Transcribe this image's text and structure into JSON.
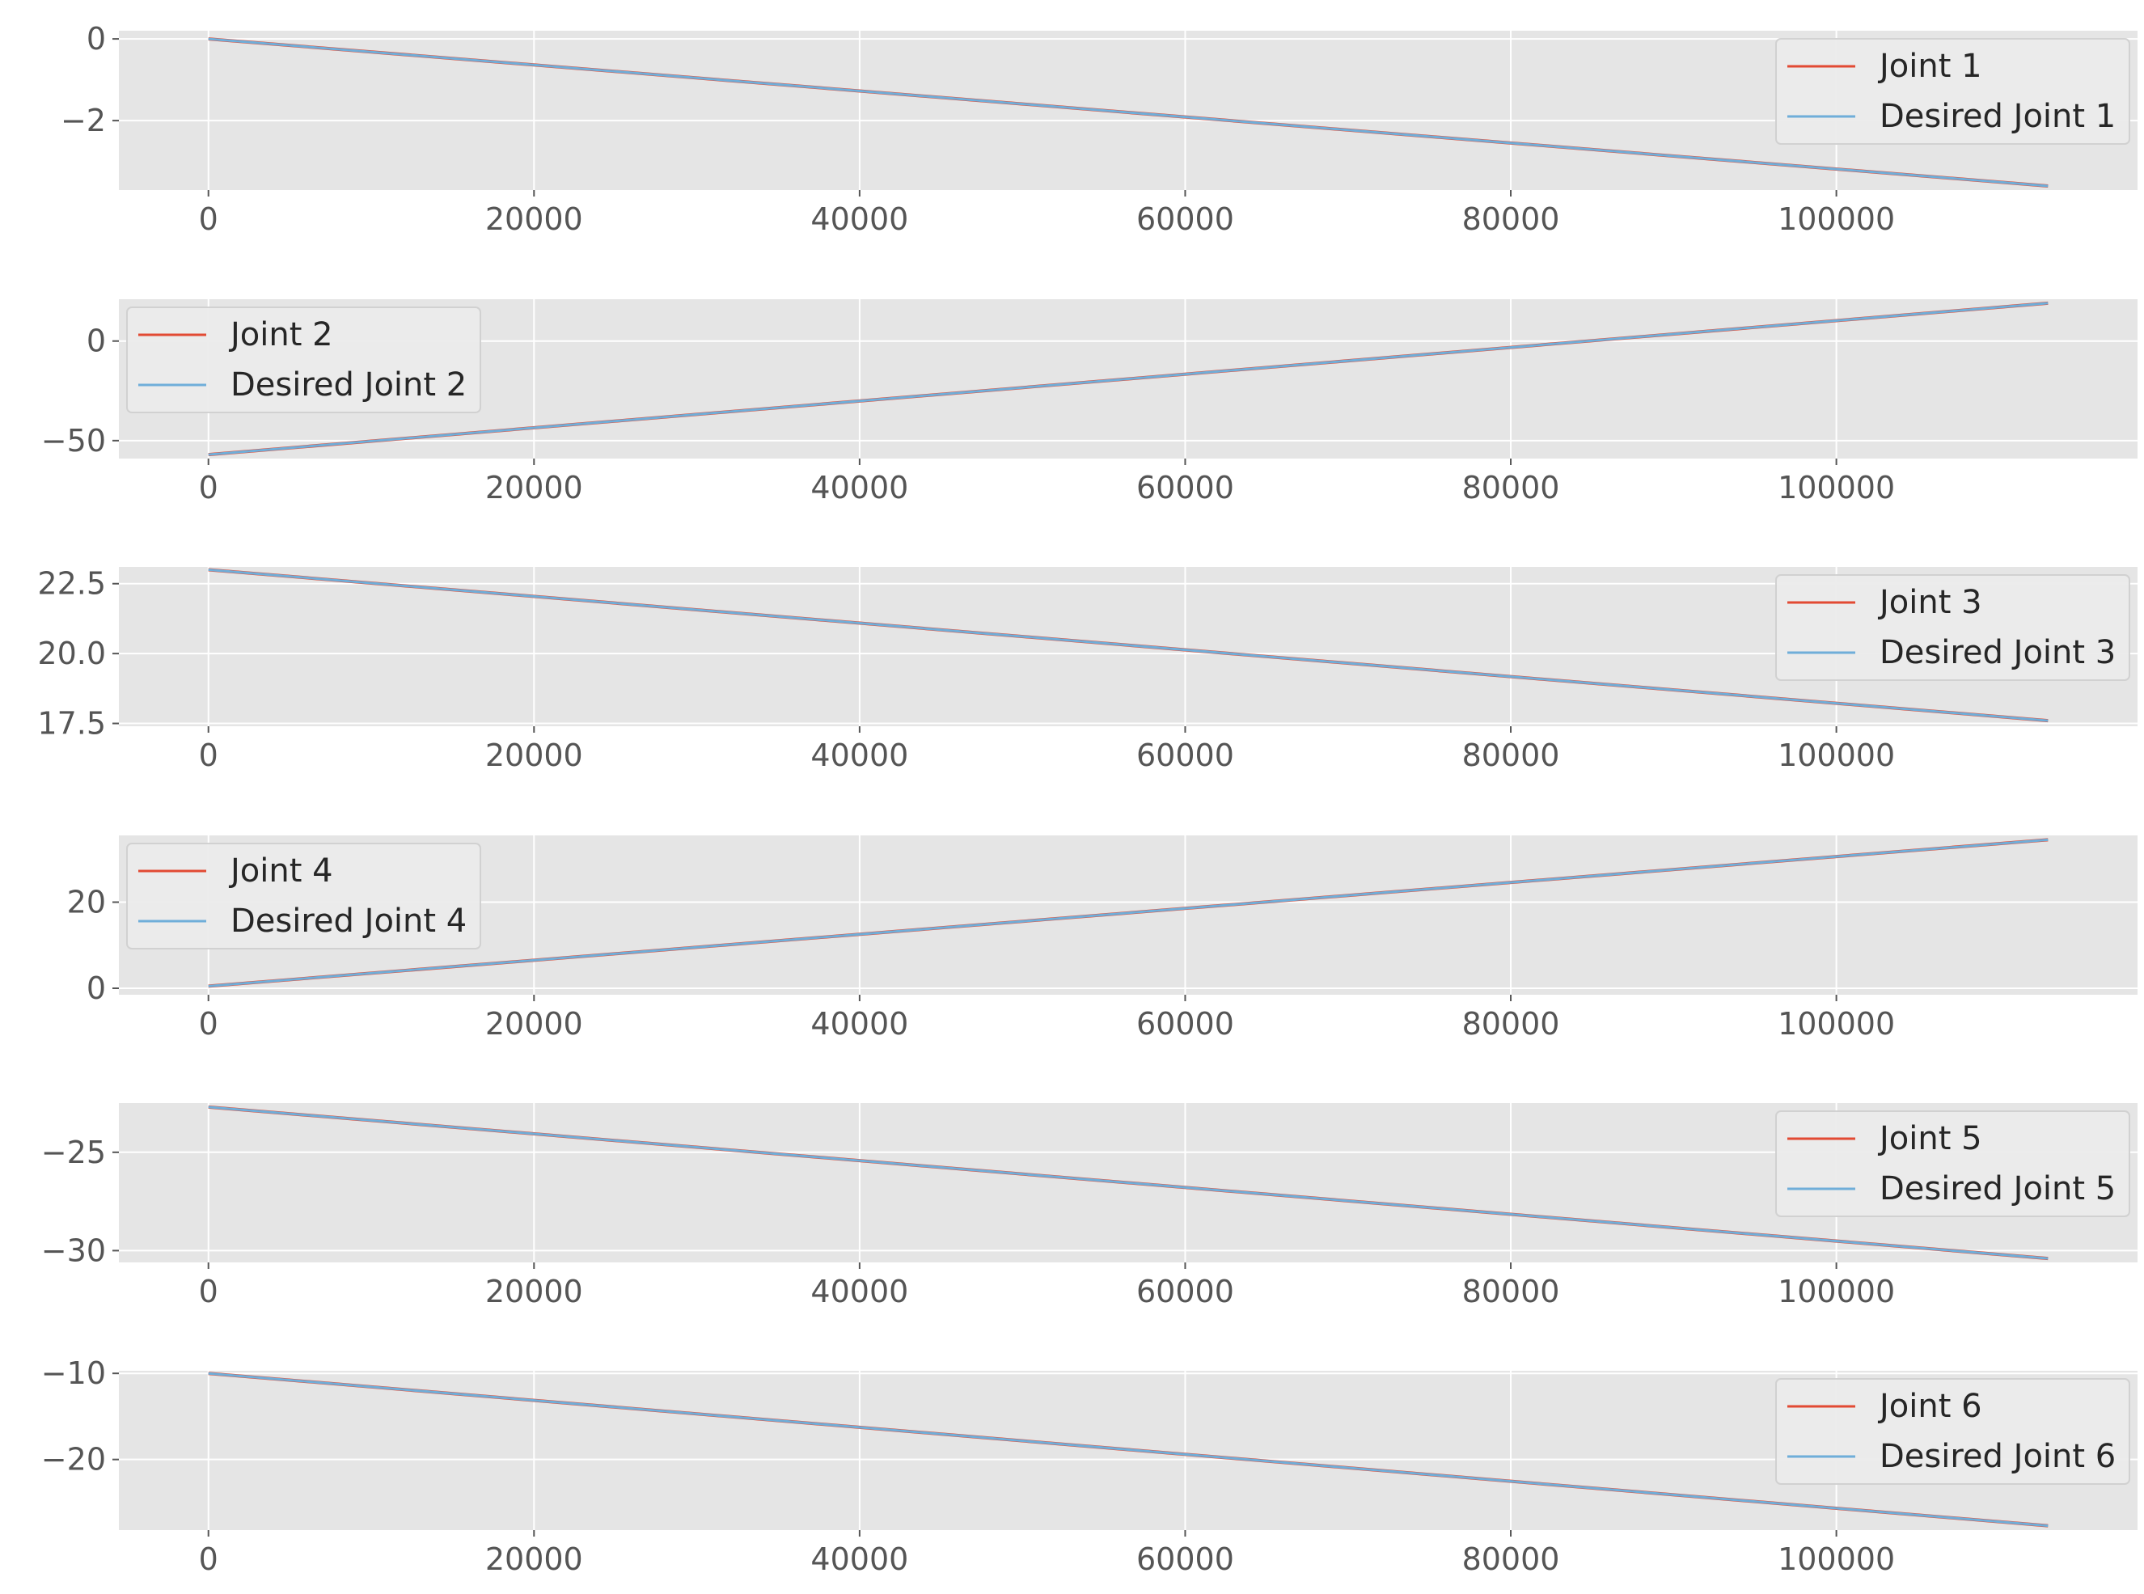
{
  "colors": {
    "background": "#ffffff",
    "axes_face": "#e5e5e5",
    "grid": "#ffffff",
    "tick_text": "#555555",
    "legend_face": "#ececec",
    "legend_edge": "#d0d0d0",
    "joint": "#e24a33",
    "desired": "#6faed9"
  },
  "chart_data": [
    {
      "type": "line",
      "x": [
        0,
        113000
      ],
      "xlim": [
        -5500,
        118500
      ],
      "xticks": [
        0,
        20000,
        40000,
        60000,
        80000,
        100000
      ],
      "ylim": [
        -3.7,
        0.2
      ],
      "yticks": [
        0,
        -2
      ],
      "legend": "top-right",
      "grid": true,
      "series": [
        {
          "name": "Joint 1",
          "values": [
            0.0,
            -3.6
          ]
        },
        {
          "name": "Desired Joint 1",
          "values": [
            0.0,
            -3.6
          ]
        }
      ]
    },
    {
      "type": "line",
      "x": [
        0,
        113000
      ],
      "xlim": [
        -5500,
        118500
      ],
      "xticks": [
        0,
        20000,
        40000,
        60000,
        80000,
        100000
      ],
      "ylim": [
        -59,
        21
      ],
      "yticks": [
        0,
        -50
      ],
      "legend": "top-left",
      "grid": true,
      "series": [
        {
          "name": "Joint 2",
          "values": [
            -57,
            19
          ]
        },
        {
          "name": "Desired Joint 2",
          "values": [
            -57,
            19
          ]
        }
      ]
    },
    {
      "type": "line",
      "x": [
        0,
        113000
      ],
      "xlim": [
        -5500,
        118500
      ],
      "xticks": [
        0,
        20000,
        40000,
        60000,
        80000,
        100000
      ],
      "ylim": [
        17.4,
        23.1
      ],
      "yticks": [
        22.5,
        20.0,
        17.5
      ],
      "legend": "top-right",
      "grid": true,
      "series": [
        {
          "name": "Joint 3",
          "values": [
            23.0,
            17.6
          ]
        },
        {
          "name": "Desired Joint 3",
          "values": [
            23.0,
            17.6
          ]
        }
      ]
    },
    {
      "type": "line",
      "x": [
        0,
        113000
      ],
      "xlim": [
        -5500,
        118500
      ],
      "xticks": [
        0,
        20000,
        40000,
        60000,
        80000,
        100000
      ],
      "ylim": [
        -1.5,
        35.5
      ],
      "yticks": [
        20,
        0
      ],
      "legend": "top-left",
      "grid": true,
      "series": [
        {
          "name": "Joint 4",
          "values": [
            0.5,
            34.5
          ]
        },
        {
          "name": "Desired Joint 4",
          "values": [
            0.5,
            34.5
          ]
        }
      ]
    },
    {
      "type": "line",
      "x": [
        0,
        113000
      ],
      "xlim": [
        -5500,
        118500
      ],
      "xticks": [
        0,
        20000,
        40000,
        60000,
        80000,
        100000
      ],
      "ylim": [
        -30.6,
        -22.5
      ],
      "yticks": [
        -25,
        -30
      ],
      "legend": "top-right",
      "grid": true,
      "series": [
        {
          "name": "Joint 5",
          "values": [
            -22.7,
            -30.4
          ]
        },
        {
          "name": "Desired Joint 5",
          "values": [
            -22.7,
            -30.4
          ]
        }
      ]
    },
    {
      "type": "line",
      "x": [
        0,
        113000
      ],
      "xlim": [
        -5500,
        118500
      ],
      "xticks": [
        0,
        20000,
        40000,
        60000,
        80000,
        100000
      ],
      "ylim": [
        -28.2,
        -9.7
      ],
      "yticks": [
        -10,
        -20
      ],
      "legend": "top-right",
      "grid": true,
      "series": [
        {
          "name": "Joint 6",
          "values": [
            -10.0,
            -27.7
          ]
        },
        {
          "name": "Desired Joint 6",
          "values": [
            -10.0,
            -27.7
          ]
        }
      ]
    }
  ]
}
